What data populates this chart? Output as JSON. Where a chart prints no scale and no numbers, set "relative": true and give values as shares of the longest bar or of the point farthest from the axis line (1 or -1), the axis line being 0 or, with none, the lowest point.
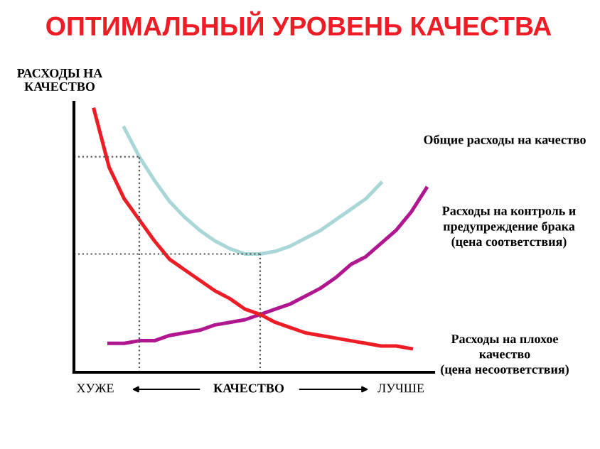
{
  "chart_data": {
    "type": "line",
    "relative": true,
    "title": "ОПТИМАЛЬНЫЙ УРОВЕНЬ КАЧЕСТВА",
    "ylabel": "РАСХОДЫ НА\nКАЧЕСТВО",
    "xlabel": "КАЧЕСТВО",
    "annotations": [
      "ХУЖЕ",
      "ЛУЧШЕ"
    ],
    "categories": [
      null,
      null,
      null,
      null,
      null,
      null,
      null,
      null,
      null,
      null,
      null,
      null,
      null,
      null,
      null,
      null,
      null,
      null,
      null,
      null,
      null,
      null,
      null
    ],
    "series": [
      {
        "name": "Общие расходы на качество",
        "color": "#a9d6d6",
        "values": [
          null,
          null,
          0.93,
          0.82,
          0.73,
          0.65,
          0.59,
          0.54,
          0.5,
          0.47,
          0.45,
          0.45,
          0.46,
          0.48,
          0.51,
          0.54,
          0.58,
          0.62,
          0.66,
          0.72,
          null,
          null,
          null
        ]
      },
      {
        "name": "Расходы на контроль и\nпредупреждение брака\n(цена соответствия)",
        "color": "#b0168f",
        "values": [
          null,
          0.11,
          0.11,
          0.12,
          0.12,
          0.14,
          0.15,
          0.16,
          0.18,
          0.19,
          0.2,
          0.22,
          0.24,
          0.26,
          0.29,
          0.32,
          0.36,
          0.41,
          0.44,
          0.49,
          0.54,
          0.61,
          0.7
        ]
      },
      {
        "name": "Расходы на плохое\nкачество\n(цена несоответствия)",
        "color": "#ee1c25",
        "values": [
          1.0,
          0.78,
          0.66,
          0.58,
          0.5,
          0.43,
          0.39,
          0.35,
          0.31,
          0.28,
          0.24,
          0.22,
          0.19,
          0.17,
          0.15,
          0.14,
          0.13,
          0.12,
          0.11,
          0.1,
          0.1,
          0.09,
          null
        ]
      }
    ],
    "ref_lines": [
      {
        "axis": "y",
        "value": 0.82,
        "line_style": "dotted",
        "color": "#555555"
      },
      {
        "axis": "y",
        "value": 0.45,
        "line_style": "dotted",
        "color": "#555555"
      }
    ],
    "grid": false,
    "legend": false,
    "line_style": "solid",
    "marker": "none"
  }
}
